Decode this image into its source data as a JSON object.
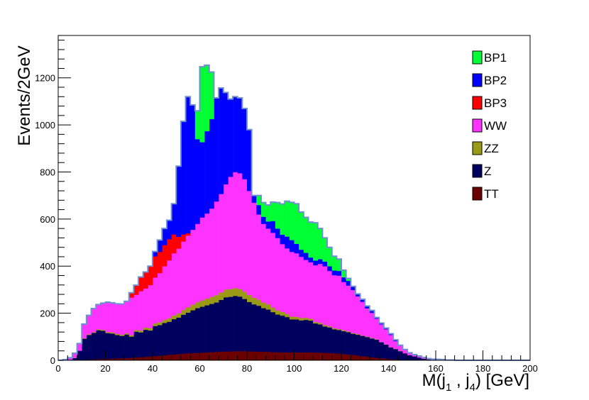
{
  "chart_data": {
    "type": "area",
    "stacked": true,
    "histogram": true,
    "title": "",
    "xlabel": "M(j₁ , j₄) [GeV]",
    "ylabel": "Events/2GeV",
    "xlabel_parts": {
      "main": "M(j",
      "sub1": "1",
      "mid": " , j",
      "sub2": "4",
      "end": ") [GeV]"
    },
    "xlim": [
      0,
      200
    ],
    "ylim": [
      0,
      1380
    ],
    "bin_width": 2,
    "xticks": [
      0,
      20,
      40,
      60,
      80,
      100,
      120,
      140,
      160,
      180,
      200
    ],
    "yticks": [
      0,
      200,
      400,
      600,
      800,
      1000,
      1200
    ],
    "legend_position": "top-right",
    "grid": false,
    "outline_color": "#7090d0",
    "x": [
      1,
      3,
      5,
      7,
      9,
      11,
      13,
      15,
      17,
      19,
      21,
      23,
      25,
      27,
      29,
      31,
      33,
      35,
      37,
      39,
      41,
      43,
      45,
      47,
      49,
      51,
      53,
      55,
      57,
      59,
      61,
      63,
      65,
      67,
      69,
      71,
      73,
      75,
      77,
      79,
      81,
      83,
      85,
      87,
      89,
      91,
      93,
      95,
      97,
      99,
      101,
      103,
      105,
      107,
      109,
      111,
      113,
      115,
      117,
      119,
      121,
      123,
      125,
      127,
      129,
      131,
      133,
      135,
      137,
      139,
      141,
      143,
      145,
      147,
      149,
      151,
      153,
      155,
      157,
      159,
      161,
      163,
      165,
      167,
      169,
      171,
      173,
      175,
      177,
      179,
      181,
      183,
      185,
      187,
      189,
      191,
      193,
      195,
      197,
      199
    ],
    "series": [
      {
        "name": "TT",
        "color": "#6b0000",
        "values": [
          0,
          0,
          0,
          0,
          1,
          2,
          3,
          4,
          5,
          6,
          6,
          7,
          8,
          9,
          10,
          11,
          12,
          14,
          15,
          17,
          18,
          20,
          22,
          24,
          25,
          27,
          29,
          30,
          31,
          32,
          33,
          34,
          35,
          36,
          37,
          38,
          38,
          39,
          39,
          39,
          38,
          38,
          37,
          37,
          36,
          35,
          35,
          34,
          34,
          34,
          34,
          34,
          34,
          34,
          33,
          33,
          32,
          31,
          30,
          29,
          27,
          25,
          23,
          21,
          18,
          16,
          13,
          11,
          9,
          7,
          5,
          4,
          3,
          2,
          1,
          1,
          1,
          0,
          0,
          0,
          0,
          0,
          0,
          0,
          0,
          0,
          0,
          0,
          0,
          0,
          0,
          0,
          0,
          0,
          0,
          0,
          0,
          0,
          0,
          0
        ]
      },
      {
        "name": "Z",
        "color": "#00005e",
        "values": [
          0,
          1,
          3,
          10,
          40,
          90,
          105,
          113,
          123,
          120,
          110,
          107,
          100,
          95,
          100,
          90,
          110,
          105,
          115,
          110,
          128,
          130,
          137,
          140,
          150,
          155,
          165,
          173,
          182,
          190,
          195,
          200,
          205,
          210,
          220,
          230,
          232,
          235,
          232,
          222,
          210,
          200,
          195,
          185,
          180,
          170,
          160,
          156,
          150,
          140,
          140,
          136,
          138,
          135,
          124,
          120,
          112,
          109,
          102,
          100,
          97,
          95,
          90,
          88,
          86,
          83,
          80,
          77,
          68,
          60,
          50,
          44,
          36,
          28,
          21,
          16,
          11,
          7,
          4,
          3,
          2,
          2,
          1,
          1,
          0,
          0,
          0,
          0,
          0,
          0,
          0,
          0,
          0,
          0,
          0,
          0,
          0,
          0,
          0,
          0
        ]
      },
      {
        "name": "ZZ",
        "color": "#9a9a15",
        "values": [
          0,
          0,
          0,
          0,
          0,
          2,
          3,
          3,
          4,
          4,
          4,
          5,
          5,
          5,
          6,
          6,
          7,
          8,
          9,
          10,
          11,
          12,
          13,
          15,
          16,
          18,
          20,
          22,
          24,
          25,
          27,
          28,
          30,
          31,
          32,
          33,
          33,
          33,
          32,
          31,
          30,
          28,
          26,
          24,
          22,
          20,
          18,
          16,
          14,
          12,
          11,
          10,
          9,
          8,
          7,
          7,
          6,
          5,
          5,
          4,
          4,
          3,
          3,
          3,
          2,
          2,
          2,
          2,
          1,
          1,
          1,
          1,
          1,
          0,
          0,
          0,
          0,
          0,
          0,
          0,
          0,
          0,
          0,
          0,
          0,
          0,
          0,
          0,
          0,
          0,
          0,
          0,
          0,
          0,
          0,
          0,
          0,
          0,
          0,
          0
        ]
      },
      {
        "name": "WW",
        "color": "#ff33ff",
        "values": [
          0,
          2,
          8,
          20,
          30,
          60,
          80,
          100,
          105,
          113,
          127,
          125,
          127,
          130,
          135,
          160,
          150,
          167,
          166,
          183,
          195,
          209,
          228,
          246,
          264,
          275,
          291,
          305,
          318,
          333,
          352,
          362,
          375,
          398,
          418,
          447,
          477,
          493,
          492,
          478,
          442,
          404,
          362,
          334,
          322,
          317,
          307,
          288,
          278,
          275,
          270,
          260,
          246,
          240,
          240,
          250,
          250,
          235,
          225,
          227,
          205,
          195,
          183,
          160,
          143,
          120,
          107,
          87,
          75,
          64,
          52,
          33,
          24,
          16,
          10,
          7,
          6,
          5,
          3,
          2,
          2,
          1,
          0,
          0,
          0,
          0,
          0,
          0,
          0,
          0,
          0,
          0,
          0,
          0,
          0,
          0,
          0,
          0,
          0,
          0
        ]
      },
      {
        "name": "BP3",
        "color": "#ff0000",
        "values": [
          0,
          0,
          0,
          0,
          0,
          0,
          0,
          0,
          0,
          0,
          0,
          0,
          0,
          0,
          0,
          20,
          40,
          60,
          70,
          80,
          90,
          90,
          90,
          90,
          80,
          50,
          30,
          10,
          0,
          0,
          0,
          0,
          0,
          0,
          0,
          0,
          0,
          0,
          0,
          0,
          0,
          0,
          0,
          0,
          0,
          0,
          0,
          0,
          0,
          0,
          0,
          0,
          0,
          0,
          0,
          0,
          0,
          0,
          0,
          0,
          0,
          0,
          0,
          0,
          0,
          0,
          0,
          0,
          0,
          0,
          0,
          0,
          0,
          0,
          0,
          0,
          0,
          0,
          0,
          0,
          0,
          0,
          0,
          0,
          0,
          0,
          0,
          0,
          0,
          0,
          0,
          0,
          0,
          0,
          0,
          0,
          0,
          0,
          0,
          0
        ]
      },
      {
        "name": "BP2",
        "color": "#0000ff",
        "values": [
          0,
          0,
          0,
          0,
          0,
          0,
          0,
          0,
          0,
          0,
          0,
          0,
          0,
          0,
          0,
          0,
          0,
          0,
          0,
          0,
          20,
          50,
          70,
          80,
          130,
          300,
          480,
          580,
          530,
          360,
          320,
          350,
          380,
          440,
          450,
          390,
          330,
          320,
          320,
          300,
          260,
          30,
          40,
          30,
          30,
          50,
          40,
          40,
          50,
          50,
          40,
          30,
          30,
          20,
          20,
          20,
          20,
          20,
          20,
          20,
          20,
          20,
          15,
          10,
          10,
          10,
          10,
          5,
          5,
          5,
          5,
          5,
          0,
          0,
          0,
          0,
          0,
          0,
          0,
          0,
          0,
          0,
          0,
          0,
          0,
          0,
          0,
          0,
          0,
          0,
          0,
          0,
          0,
          0,
          0,
          0,
          0,
          0,
          0,
          0
        ]
      },
      {
        "name": "BP1",
        "color": "#00ff33",
        "values": [
          0,
          0,
          0,
          0,
          0,
          0,
          0,
          0,
          0,
          0,
          0,
          0,
          0,
          0,
          0,
          0,
          0,
          0,
          0,
          0,
          0,
          0,
          0,
          0,
          0,
          0,
          0,
          0,
          0,
          120,
          320,
          280,
          200,
          0,
          0,
          0,
          0,
          0,
          0,
          0,
          0,
          0,
          40,
          60,
          70,
          80,
          110,
          130,
          150,
          160,
          170,
          160,
          150,
          150,
          160,
          130,
          100,
          80,
          60,
          50,
          30,
          10,
          0,
          0,
          0,
          0,
          0,
          0,
          0,
          0,
          0,
          0,
          0,
          0,
          0,
          0,
          0,
          0,
          0,
          0,
          0,
          0,
          0,
          0,
          0,
          0,
          0,
          0,
          0,
          0,
          0,
          0,
          0,
          0,
          0,
          0,
          0,
          0,
          0,
          0
        ]
      }
    ],
    "legend": [
      {
        "name": "BP1",
        "color": "#00ff33"
      },
      {
        "name": "BP2",
        "color": "#0000ff"
      },
      {
        "name": "BP3",
        "color": "#ff0000"
      },
      {
        "name": "WW",
        "color": "#ff33ff"
      },
      {
        "name": "ZZ",
        "color": "#9a9a15"
      },
      {
        "name": "Z",
        "color": "#00005e"
      },
      {
        "name": "TT",
        "color": "#6b0000"
      }
    ]
  }
}
